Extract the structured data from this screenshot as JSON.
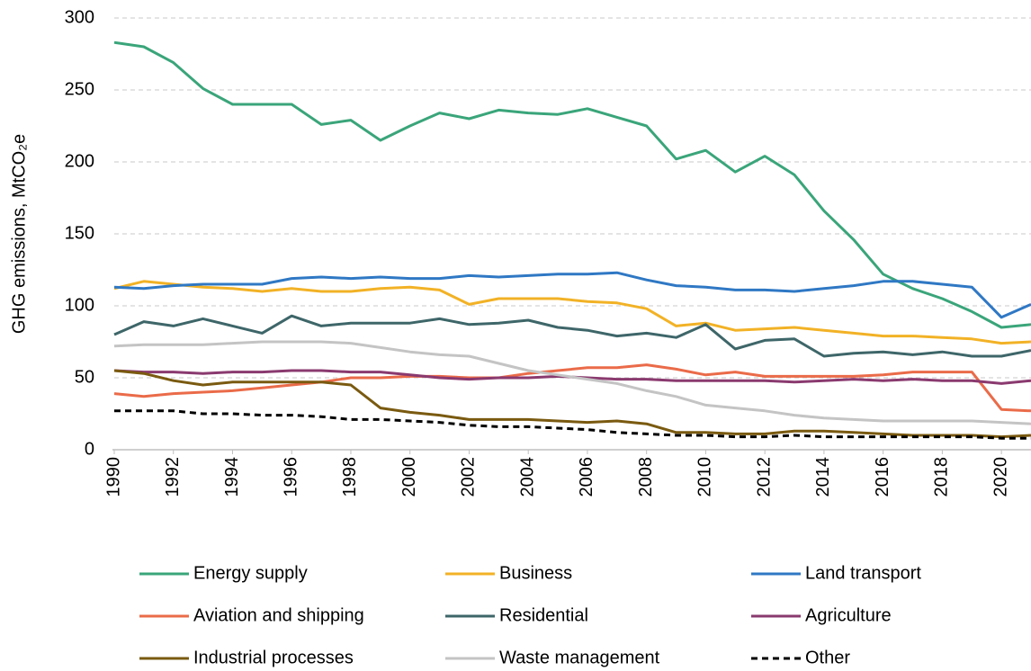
{
  "chart_data": {
    "type": "line",
    "y_label": "GHG emissions, MtCO₂e",
    "x": [
      1990,
      1991,
      1992,
      1993,
      1994,
      1995,
      1996,
      1997,
      1998,
      1999,
      2000,
      2001,
      2002,
      2003,
      2004,
      2005,
      2006,
      2007,
      2008,
      2009,
      2010,
      2011,
      2012,
      2013,
      2014,
      2015,
      2016,
      2017,
      2018,
      2019,
      2020,
      2021
    ],
    "xlim": [
      1990,
      2021
    ],
    "xticks": [
      1990,
      1992,
      1994,
      1996,
      1998,
      2000,
      2002,
      2004,
      2006,
      2008,
      2010,
      2012,
      2014,
      2016,
      2018,
      2020
    ],
    "ylim": [
      0,
      300
    ],
    "yticks": [
      0,
      50,
      100,
      150,
      200,
      250,
      300
    ],
    "grid": true,
    "legend": "bottom",
    "series": [
      {
        "name": "Energy supply",
        "color": "#3aa57a",
        "values": [
          283,
          280,
          269,
          251,
          240,
          240,
          240,
          226,
          229,
          215,
          225,
          234,
          230,
          236,
          234,
          233,
          237,
          231,
          225,
          202,
          208,
          193,
          204,
          191,
          166,
          146,
          122,
          112,
          105,
          96,
          85,
          87
        ]
      },
      {
        "name": "Business",
        "color": "#f2b226",
        "values": [
          112,
          117,
          115,
          113,
          112,
          110,
          112,
          110,
          110,
          112,
          113,
          111,
          101,
          105,
          105,
          105,
          103,
          102,
          98,
          86,
          88,
          83,
          84,
          85,
          83,
          81,
          79,
          79,
          78,
          77,
          74,
          75
        ]
      },
      {
        "name": "Land transport",
        "color": "#2f78c4",
        "values": [
          113,
          112,
          114,
          115,
          115,
          115,
          119,
          120,
          119,
          120,
          119,
          119,
          121,
          120,
          121,
          122,
          122,
          123,
          118,
          114,
          113,
          111,
          111,
          110,
          112,
          114,
          117,
          117,
          115,
          113,
          92,
          101
        ]
      },
      {
        "name": "Aviation and shipping",
        "color": "#ea6b49",
        "values": [
          39,
          37,
          39,
          40,
          41,
          43,
          45,
          47,
          50,
          50,
          51,
          51,
          50,
          50,
          53,
          55,
          57,
          57,
          59,
          56,
          52,
          54,
          51,
          51,
          51,
          51,
          52,
          54,
          54,
          54,
          28,
          27
        ]
      },
      {
        "name": "Residential",
        "color": "#3e6669",
        "values": [
          80,
          89,
          86,
          91,
          86,
          81,
          93,
          86,
          88,
          88,
          88,
          91,
          87,
          88,
          90,
          85,
          83,
          79,
          81,
          78,
          87,
          70,
          76,
          77,
          65,
          67,
          68,
          66,
          68,
          65,
          65,
          69
        ]
      },
      {
        "name": "Agriculture",
        "color": "#8a3a6f",
        "values": [
          55,
          54,
          54,
          53,
          54,
          54,
          55,
          55,
          54,
          54,
          52,
          50,
          49,
          50,
          50,
          51,
          50,
          49,
          49,
          48,
          48,
          48,
          48,
          47,
          48,
          49,
          48,
          49,
          48,
          48,
          46,
          48
        ]
      },
      {
        "name": "Industrial processes",
        "color": "#7a5a10",
        "values": [
          55,
          53,
          48,
          45,
          47,
          47,
          47,
          47,
          45,
          29,
          26,
          24,
          21,
          21,
          21,
          20,
          19,
          20,
          18,
          12,
          12,
          11,
          11,
          13,
          13,
          12,
          11,
          10,
          10,
          10,
          9,
          10
        ]
      },
      {
        "name": "Waste management",
        "color": "#c4c4c4",
        "values": [
          72,
          73,
          73,
          73,
          74,
          75,
          75,
          75,
          74,
          71,
          68,
          66,
          65,
          60,
          55,
          52,
          49,
          46,
          41,
          37,
          31,
          29,
          27,
          24,
          22,
          21,
          20,
          20,
          20,
          20,
          19,
          18
        ]
      },
      {
        "name": "Other",
        "color": "#000000",
        "linestyle": "dashed",
        "values": [
          27,
          27,
          27,
          25,
          25,
          24,
          24,
          23,
          21,
          21,
          20,
          19,
          17,
          16,
          16,
          15,
          14,
          12,
          11,
          10,
          10,
          9,
          9,
          10,
          9,
          9,
          9,
          9,
          9,
          9,
          8,
          8
        ]
      }
    ]
  }
}
